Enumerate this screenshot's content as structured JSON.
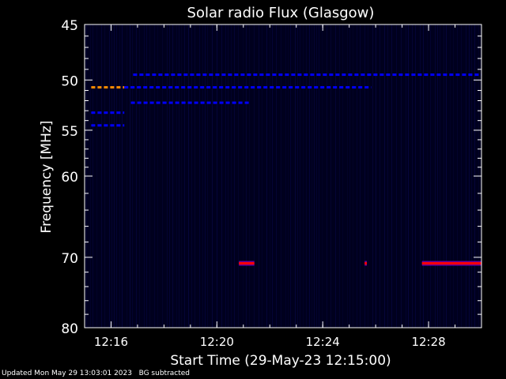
{
  "chart_data": {
    "type": "heatmap",
    "title": "Solar radio Flux (Glasgow)",
    "xlabel": "Start Time (29-May-23 12:15:00)",
    "ylabel": "Frequency [MHz]",
    "xlim_minutes": [
      12.25,
      12.5
    ],
    "xlim": [
      "12:15:00",
      "12:30:00"
    ],
    "ylim": [
      45,
      80
    ],
    "y_scale": "log",
    "x_ticks": [
      "12:16",
      "12:20",
      "12:24",
      "12:28"
    ],
    "y_ticks": [
      45,
      50,
      55,
      60,
      70,
      80
    ],
    "colormap": {
      "background": "#00001e",
      "low": "#0000ff",
      "mid": "#ff0000",
      "high": "#ff8c00"
    },
    "features": [
      {
        "name": "emission-50.7MHz",
        "freq": 50.7,
        "t_start": "12:15:15",
        "t_end": "12:16:30",
        "level": "high"
      },
      {
        "name": "emission-50.7MHz-cont",
        "freq": 50.7,
        "t_start": "12:16:30",
        "t_end": "12:25:50",
        "level": "low"
      },
      {
        "name": "emission-49.5MHz",
        "freq": 49.5,
        "t_start": "12:16:50",
        "t_end": "12:30:00",
        "level": "low"
      },
      {
        "name": "emission-52MHz",
        "freq": 52.2,
        "t_start": "12:16:45",
        "t_end": "12:21:15",
        "level": "low"
      },
      {
        "name": "emission-53MHz",
        "freq": 53.2,
        "t_start": "12:15:15",
        "t_end": "12:16:30",
        "level": "low"
      },
      {
        "name": "emission-54.5MHz",
        "freq": 54.5,
        "t_start": "12:15:15",
        "t_end": "12:16:30",
        "level": "low"
      },
      {
        "name": "emission-71MHz-a",
        "freq": 70.8,
        "t_start": "12:20:50",
        "t_end": "12:21:25",
        "level": "mid"
      },
      {
        "name": "emission-71MHz-b",
        "freq": 70.8,
        "t_start": "12:25:35",
        "t_end": "12:25:40",
        "level": "mid"
      },
      {
        "name": "emission-71MHz-c",
        "freq": 70.8,
        "t_start": "12:27:45",
        "t_end": "12:30:00",
        "level": "mid"
      }
    ]
  },
  "footer": {
    "updated": "Updated Mon May 29 13:03:01 2023",
    "note": "BG subtracted"
  }
}
